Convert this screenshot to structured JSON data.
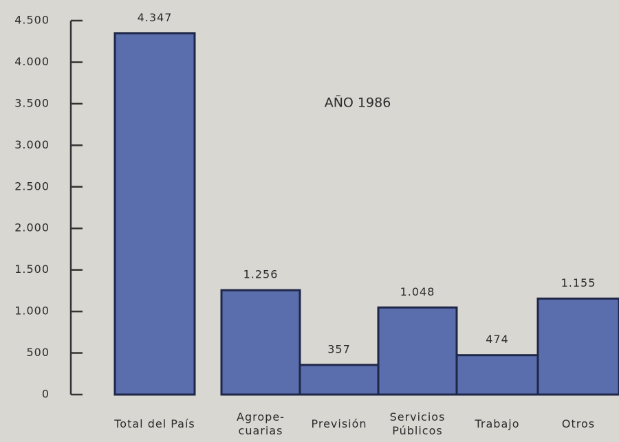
{
  "chart_data": {
    "type": "bar",
    "annotation": "AÑO 1986",
    "categories": [
      "Total del País",
      "Agrope-\ncuarias",
      "Previsión",
      "Servicios\nPúblicos",
      "Trabajo",
      "Otros"
    ],
    "values": [
      4347,
      1256,
      357,
      1048,
      474,
      1155
    ],
    "value_labels": [
      "4.347",
      "1.256",
      "357",
      "1.048",
      "474",
      "1.155"
    ],
    "color": "#5a6eae",
    "ylim": [
      0,
      4500
    ],
    "yticks": [
      0,
      500,
      {
        "value": 1000,
        "label": "1.000"
      },
      {
        "value": 1500,
        "label": "1.500"
      },
      {
        "value": 2000,
        "label": "2.000"
      },
      {
        "value": 2500,
        "label": "2.500"
      },
      {
        "value": 3000,
        "label": "3.000"
      },
      {
        "value": 3500,
        "label": "3.500"
      },
      {
        "value": 4000,
        "label": "4.000"
      },
      {
        "value": 4500,
        "label": "4.500"
      }
    ]
  }
}
